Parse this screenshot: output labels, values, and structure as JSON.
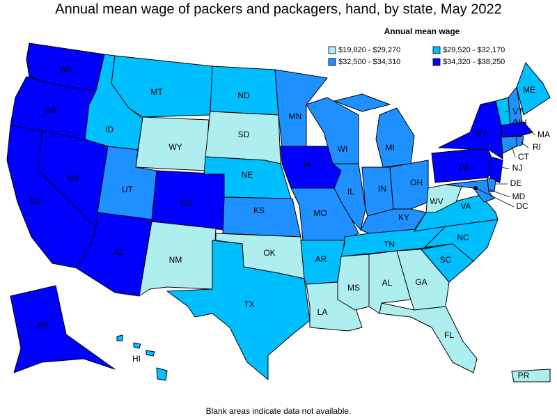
{
  "title": "Annual mean wage of packers and packagers, hand, by state, May 2022",
  "legend": {
    "title": "Annual mean wage",
    "items": [
      {
        "label": "$19,820 - $29,270",
        "color": "#afeeee"
      },
      {
        "label": "$29,520 - $32,170",
        "color": "#00bfff"
      },
      {
        "label": "$32,500 - $34,310",
        "color": "#1e90ff"
      },
      {
        "label": "$34,320 - $38,250",
        "color": "#0000ff"
      }
    ]
  },
  "states": [
    {
      "abbr": "WA",
      "bin": 3
    },
    {
      "abbr": "OR",
      "bin": 3
    },
    {
      "abbr": "CA",
      "bin": 3
    },
    {
      "abbr": "NV",
      "bin": 3
    },
    {
      "abbr": "ID",
      "bin": 1
    },
    {
      "abbr": "MT",
      "bin": 1
    },
    {
      "abbr": "WY",
      "bin": 0
    },
    {
      "abbr": "UT",
      "bin": 2
    },
    {
      "abbr": "AZ",
      "bin": 3
    },
    {
      "abbr": "CO",
      "bin": 3
    },
    {
      "abbr": "NM",
      "bin": 0
    },
    {
      "abbr": "ND",
      "bin": 1
    },
    {
      "abbr": "SD",
      "bin": 0
    },
    {
      "abbr": "NE",
      "bin": 1
    },
    {
      "abbr": "KS",
      "bin": 2
    },
    {
      "abbr": "OK",
      "bin": 0
    },
    {
      "abbr": "TX",
      "bin": 1
    },
    {
      "abbr": "MN",
      "bin": 2
    },
    {
      "abbr": "IA",
      "bin": 3
    },
    {
      "abbr": "MO",
      "bin": 2
    },
    {
      "abbr": "AR",
      "bin": 1
    },
    {
      "abbr": "LA",
      "bin": 0
    },
    {
      "abbr": "WI",
      "bin": 2
    },
    {
      "abbr": "IL",
      "bin": 2
    },
    {
      "abbr": "MI",
      "bin": 2
    },
    {
      "abbr": "IN",
      "bin": 2
    },
    {
      "abbr": "OH",
      "bin": 2
    },
    {
      "abbr": "KY",
      "bin": 2
    },
    {
      "abbr": "TN",
      "bin": 1
    },
    {
      "abbr": "MS",
      "bin": 0
    },
    {
      "abbr": "AL",
      "bin": 0
    },
    {
      "abbr": "GA",
      "bin": 0
    },
    {
      "abbr": "FL",
      "bin": 0
    },
    {
      "abbr": "SC",
      "bin": 1
    },
    {
      "abbr": "NC",
      "bin": 1
    },
    {
      "abbr": "VA",
      "bin": 1
    },
    {
      "abbr": "WV",
      "bin": 0
    },
    {
      "abbr": "PA",
      "bin": 3
    },
    {
      "abbr": "NY",
      "bin": 3
    },
    {
      "abbr": "NJ",
      "bin": 3
    },
    {
      "abbr": "DE",
      "bin": 2
    },
    {
      "abbr": "MD",
      "bin": 2
    },
    {
      "abbr": "VT",
      "bin": 1
    },
    {
      "abbr": "NH",
      "bin": 2
    },
    {
      "abbr": "ME",
      "bin": 1
    },
    {
      "abbr": "MA",
      "bin": 3
    },
    {
      "abbr": "CT",
      "bin": 2
    },
    {
      "abbr": "RI",
      "bin": 2
    },
    {
      "abbr": "AK",
      "bin": 3
    },
    {
      "abbr": "HI",
      "bin": 1
    },
    {
      "abbr": "PR",
      "bin": 0
    },
    {
      "abbr": "DC",
      "bin": 2
    }
  ],
  "footnote": "Blank areas indicate data not available."
}
